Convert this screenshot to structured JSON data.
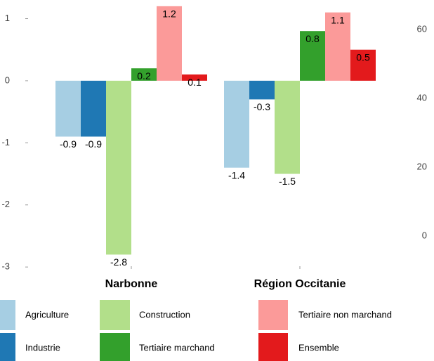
{
  "chart_data": {
    "type": "bar",
    "categories": [
      "Narbonne",
      "Région Occitanie"
    ],
    "series": [
      {
        "name": "Agriculture",
        "color": "#a6cee3",
        "values": [
          -0.9,
          -1.4
        ]
      },
      {
        "name": "Industrie",
        "color": "#1f78b4",
        "values": [
          -0.9,
          -0.3
        ]
      },
      {
        "name": "Construction",
        "color": "#b2df8a",
        "values": [
          -2.8,
          -1.5
        ]
      },
      {
        "name": "Tertiaire marchand",
        "color": "#33a02c",
        "values": [
          0.2,
          0.8
        ]
      },
      {
        "name": "Tertiaire non marchand",
        "color": "#fb9a99",
        "values": [
          1.2,
          1.1
        ]
      },
      {
        "name": "Ensemble",
        "color": "#e31a1c",
        "values": [
          0.1,
          0.5
        ]
      }
    ],
    "ylim": [
      -3.1,
      1.3
    ],
    "yticks": [
      -3,
      -2,
      -1,
      0,
      1
    ],
    "y2lim": [
      -10.8,
      68.6
    ],
    "y2ticks": [
      0,
      20,
      40,
      60
    ],
    "grid": false
  }
}
